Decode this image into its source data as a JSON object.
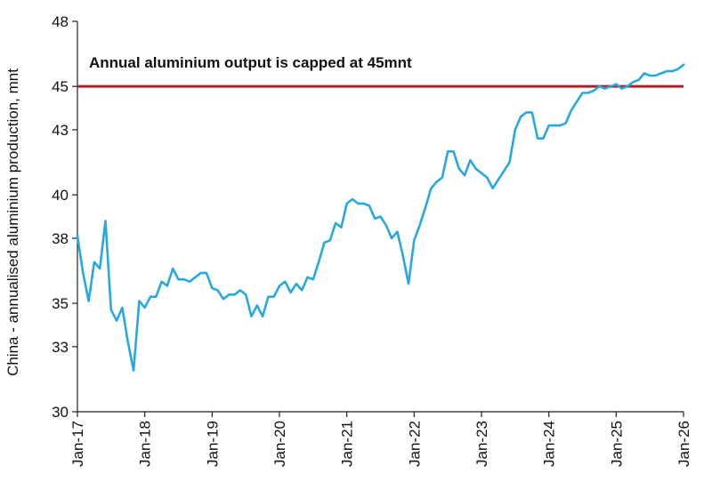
{
  "chart_data": {
    "type": "line",
    "ylabel": "China - annualised aluminium production, mnt",
    "xlabel": "",
    "ylim": [
      30,
      48
    ],
    "y_ticks": [
      30,
      33,
      35,
      38,
      40,
      43,
      45,
      48
    ],
    "x_range": [
      "2017-01",
      "2026-01"
    ],
    "x_ticks": [
      {
        "date": "2017-01",
        "label": "Jan-17"
      },
      {
        "date": "2018-01",
        "label": "Jan-18"
      },
      {
        "date": "2019-01",
        "label": "Jan-19"
      },
      {
        "date": "2020-01",
        "label": "Jan-20"
      },
      {
        "date": "2021-01",
        "label": "Jan-21"
      },
      {
        "date": "2022-01",
        "label": "Jan-22"
      },
      {
        "date": "2023-01",
        "label": "Jan-23"
      },
      {
        "date": "2024-01",
        "label": "Jan-24"
      },
      {
        "date": "2025-01",
        "label": "Jan-25"
      },
      {
        "date": "2026-01",
        "label": "Jan-26"
      }
    ],
    "grid": false,
    "reference_line": {
      "y": 45,
      "color": "#b01e23",
      "label": "Annual aluminium output is capped at 45mnt"
    },
    "series": [
      {
        "color": "#29a8e0",
        "points": [
          [
            "2017-01",
            38.1
          ],
          [
            "2017-02",
            36.4
          ],
          [
            "2017-03",
            35.1
          ],
          [
            "2017-04",
            36.9
          ],
          [
            "2017-05",
            36.6
          ],
          [
            "2017-06",
            38.8
          ],
          [
            "2017-07",
            34.7
          ],
          [
            "2017-08",
            34.2
          ],
          [
            "2017-09",
            34.8
          ],
          [
            "2017-10",
            33.2
          ],
          [
            "2017-11",
            31.9
          ],
          [
            "2017-12",
            35.1
          ],
          [
            "2018-01",
            34.8
          ],
          [
            "2018-02",
            35.3
          ],
          [
            "2018-03",
            35.3
          ],
          [
            "2018-04",
            36.0
          ],
          [
            "2018-05",
            35.8
          ],
          [
            "2018-06",
            36.6
          ],
          [
            "2018-07",
            36.1
          ],
          [
            "2018-08",
            36.1
          ],
          [
            "2018-09",
            36.0
          ],
          [
            "2018-10",
            36.2
          ],
          [
            "2018-11",
            36.4
          ],
          [
            "2018-12",
            36.4
          ],
          [
            "2019-01",
            35.7
          ],
          [
            "2019-02",
            35.6
          ],
          [
            "2019-03",
            35.2
          ],
          [
            "2019-04",
            35.4
          ],
          [
            "2019-05",
            35.4
          ],
          [
            "2019-06",
            35.6
          ],
          [
            "2019-07",
            35.4
          ],
          [
            "2019-08",
            34.4
          ],
          [
            "2019-09",
            34.9
          ],
          [
            "2019-10",
            34.4
          ],
          [
            "2019-11",
            35.3
          ],
          [
            "2019-12",
            35.3
          ],
          [
            "2020-01",
            35.8
          ],
          [
            "2020-02",
            36.0
          ],
          [
            "2020-03",
            35.5
          ],
          [
            "2020-04",
            35.9
          ],
          [
            "2020-05",
            35.6
          ],
          [
            "2020-06",
            36.2
          ],
          [
            "2020-07",
            36.1
          ],
          [
            "2020-08",
            36.9
          ],
          [
            "2020-09",
            37.8
          ],
          [
            "2020-10",
            37.9
          ],
          [
            "2020-11",
            38.7
          ],
          [
            "2020-12",
            38.5
          ],
          [
            "2021-01",
            39.6
          ],
          [
            "2021-02",
            39.8
          ],
          [
            "2021-03",
            39.6
          ],
          [
            "2021-04",
            39.6
          ],
          [
            "2021-05",
            39.5
          ],
          [
            "2021-06",
            38.9
          ],
          [
            "2021-07",
            39.0
          ],
          [
            "2021-08",
            38.6
          ],
          [
            "2021-09",
            38.0
          ],
          [
            "2021-10",
            38.3
          ],
          [
            "2021-11",
            37.2
          ],
          [
            "2021-12",
            35.9
          ],
          [
            "2022-01",
            37.9
          ],
          [
            "2022-02",
            38.6
          ],
          [
            "2022-03",
            39.4
          ],
          [
            "2022-04",
            40.3
          ],
          [
            "2022-05",
            40.6
          ],
          [
            "2022-06",
            40.8
          ],
          [
            "2022-07",
            42.0
          ],
          [
            "2022-08",
            42.0
          ],
          [
            "2022-09",
            41.2
          ],
          [
            "2022-10",
            40.9
          ],
          [
            "2022-11",
            41.6
          ],
          [
            "2022-12",
            41.2
          ],
          [
            "2023-01",
            41.0
          ],
          [
            "2023-02",
            40.8
          ],
          [
            "2023-03",
            40.3
          ],
          [
            "2023-04",
            40.7
          ],
          [
            "2023-05",
            41.1
          ],
          [
            "2023-06",
            41.5
          ],
          [
            "2023-07",
            43.0
          ],
          [
            "2023-08",
            43.6
          ],
          [
            "2023-09",
            43.8
          ],
          [
            "2023-10",
            43.8
          ],
          [
            "2023-11",
            42.6
          ],
          [
            "2023-12",
            42.6
          ],
          [
            "2024-01",
            43.2
          ],
          [
            "2024-02",
            43.2
          ],
          [
            "2024-03",
            43.2
          ],
          [
            "2024-04",
            43.3
          ],
          [
            "2024-05",
            43.9
          ],
          [
            "2024-06",
            44.3
          ],
          [
            "2024-07",
            44.7
          ],
          [
            "2024-08",
            44.7
          ],
          [
            "2024-09",
            44.8
          ],
          [
            "2024-10",
            45.0
          ],
          [
            "2024-11",
            44.9
          ],
          [
            "2024-12",
            45.0
          ],
          [
            "2025-01",
            45.1
          ],
          [
            "2025-02",
            44.9
          ],
          [
            "2025-03",
            45.0
          ],
          [
            "2025-04",
            45.2
          ],
          [
            "2025-05",
            45.3
          ],
          [
            "2025-06",
            45.6
          ],
          [
            "2025-07",
            45.5
          ],
          [
            "2025-08",
            45.5
          ],
          [
            "2025-09",
            45.6
          ],
          [
            "2025-10",
            45.7
          ],
          [
            "2025-11",
            45.7
          ],
          [
            "2025-12",
            45.8
          ],
          [
            "2026-01",
            46.0
          ]
        ]
      }
    ]
  }
}
